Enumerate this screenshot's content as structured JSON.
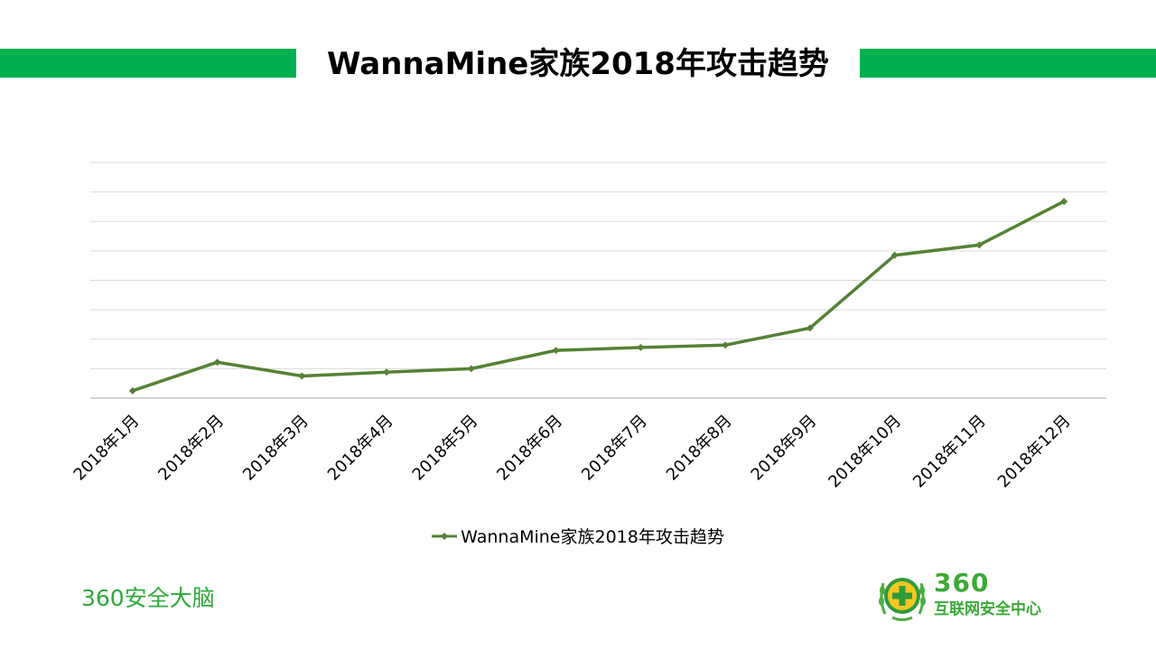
{
  "slide": {
    "title": "WannaMine家族2018年攻击趋势",
    "footer_brand": "360安全大脑",
    "logo": {
      "number": "360",
      "text": "互联网安全中心"
    }
  },
  "colors": {
    "header_bar": "#00b050",
    "line": "#548235",
    "grid": "#d9d9d9",
    "axis": "#a6a6a6",
    "brand_green": "#2ea93a"
  },
  "chart_data": {
    "type": "line",
    "categories": [
      "2018年1月",
      "2018年2月",
      "2018年3月",
      "2018年4月",
      "2018年5月",
      "2018年6月",
      "2018年7月",
      "2018年8月",
      "2018年9月",
      "2018年10月",
      "2018年11月",
      "2018年12月"
    ],
    "series": [
      {
        "name": "WannaMine家族2018年攻击趋势",
        "values": [
          0.25,
          1.22,
          0.75,
          0.88,
          1.0,
          1.62,
          1.72,
          1.8,
          2.38,
          4.85,
          5.2,
          6.68
        ]
      }
    ],
    "ylim": [
      0,
      8
    ],
    "grid": true,
    "y_ticks_visible": false,
    "legend": "bottom"
  }
}
